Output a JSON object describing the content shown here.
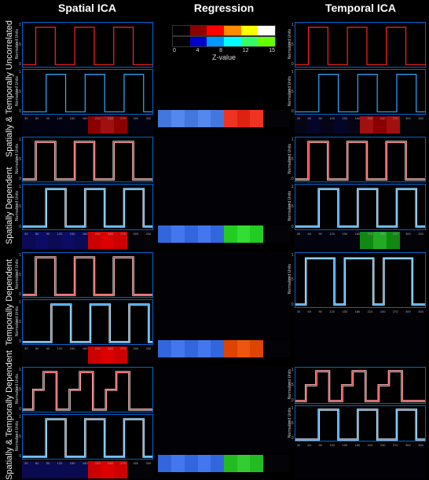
{
  "columns": [
    "Spatial ICA",
    "Regression",
    "Temporal ICA"
  ],
  "rows": [
    "Spatially & Temporally Uncorrelated",
    "Spatially Dependent",
    "Temporally Dependent",
    "Spatially & Temporally Dependent"
  ],
  "axis_y_label": "Normalized Units",
  "xticks": [
    "30",
    "60",
    "90",
    "120",
    "150",
    "180",
    "210",
    "240",
    "270",
    "300",
    "330"
  ],
  "yticks": [
    "1",
    "0.5",
    "0"
  ],
  "colorbar": {
    "label": "Z-value",
    "ticks": [
      "0",
      "4",
      "8",
      "12",
      "15"
    ],
    "colors_top": [
      "#000000",
      "#8b0000",
      "#ff0000",
      "#ff8c00",
      "#ffff00",
      "#ffffff"
    ],
    "colors_bot": [
      "#000000",
      "#0000cc",
      "#0099ff",
      "#00ffff",
      "#33ff66",
      "#66ff00"
    ]
  },
  "trace_colors": {
    "red": "#ff2222",
    "blue": "#33aaff",
    "white": "#ffffff"
  },
  "grid_data": [
    {
      "spatial_ica": {
        "traces": [
          {
            "color": "red",
            "type": "square"
          },
          {
            "color": "blue",
            "type": "square_offset"
          }
        ],
        "map": [
          "#020210",
          "#020210",
          "#020210",
          "#020210",
          "#020210",
          "#8b0000",
          "#a01010",
          "#8b0000",
          "#020210",
          "#020210"
        ]
      },
      "regression": {
        "colorbar": true,
        "map": [
          "#4477dd",
          "#5588ee",
          "#4477dd",
          "#5588ee",
          "#4477dd",
          "#ee3322",
          "#dd2211",
          "#ee3322",
          "#030308",
          "#030308"
        ]
      },
      "temporal_ica": {
        "traces": [
          {
            "color": "red",
            "type": "square"
          },
          {
            "color": "blue",
            "type": "square_offset"
          }
        ],
        "map": [
          "#050515",
          "#05052a",
          "#050515",
          "#05052a",
          "#050515",
          "#a01010",
          "#8b0000",
          "#a01010",
          "#030308",
          "#030308"
        ]
      }
    },
    {
      "spatial_ica": {
        "traces": [
          {
            "color": "red",
            "type": "square",
            "overlay": "white"
          },
          {
            "color": "blue",
            "type": "square_offset",
            "overlay": "white"
          }
        ],
        "map": [
          "#0a0a55",
          "#0c0c66",
          "#0a0a55",
          "#0c0c66",
          "#0a0a55",
          "#cc0000",
          "#dd0000",
          "#cc0000",
          "#030308",
          "#030308"
        ]
      },
      "regression": {
        "map": [
          "#3366dd",
          "#4477ee",
          "#3366dd",
          "#4477ee",
          "#3366dd",
          "#22cc22",
          "#33dd33",
          "#22cc22",
          "#030308",
          "#030308"
        ]
      },
      "temporal_ica": {
        "traces": [
          {
            "color": "red",
            "type": "square",
            "overlay": "white"
          },
          {
            "color": "blue",
            "type": "square_offset",
            "overlay": "white"
          }
        ],
        "map": [
          "#030310",
          "#030310",
          "#030310",
          "#030310",
          "#030310",
          "#118811",
          "#22aa22",
          "#118811",
          "#030308",
          "#030308"
        ]
      }
    },
    {
      "spatial_ica": {
        "traces": [
          {
            "color": "red",
            "type": "square",
            "overlay": "white"
          },
          {
            "color": "blue",
            "type": "square_late",
            "overlay": "white"
          }
        ],
        "map": [
          "#030308",
          "#030308",
          "#030308",
          "#030308",
          "#030308",
          "#cc0000",
          "#dd0000",
          "#cc0000",
          "#030308",
          "#030308"
        ]
      },
      "regression": {
        "map": [
          "#3366dd",
          "#4477ee",
          "#3366dd",
          "#4477ee",
          "#3366dd",
          "#dd4400",
          "#ee5511",
          "#dd4400",
          "#030308",
          "#030308"
        ]
      },
      "temporal_ica": {
        "traces": [
          {
            "color": "blue",
            "type": "square_merged",
            "overlay": "white"
          }
        ],
        "map": null
      }
    },
    {
      "spatial_ica": {
        "traces": [
          {
            "color": "red",
            "type": "step_complex",
            "overlay": "white"
          },
          {
            "color": "blue",
            "type": "square_offset",
            "overlay": "white"
          }
        ],
        "map": [
          "#0a0a50",
          "#0a0a50",
          "#0a0a50",
          "#0a0a50",
          "#0a0a50",
          "#cc0000",
          "#dd0000",
          "#cc0000",
          "#030308",
          "#030308"
        ]
      },
      "regression": {
        "map": [
          "#3366dd",
          "#4477ee",
          "#3366dd",
          "#4477ee",
          "#3366dd",
          "#22bb22",
          "#33cc33",
          "#22bb22",
          "#030308",
          "#030308"
        ]
      },
      "temporal_ica": {
        "traces": [
          {
            "color": "red",
            "type": "step_complex",
            "overlay": "white"
          },
          {
            "color": "blue",
            "type": "square_offset",
            "overlay": "white"
          }
        ],
        "map": null
      }
    }
  ]
}
